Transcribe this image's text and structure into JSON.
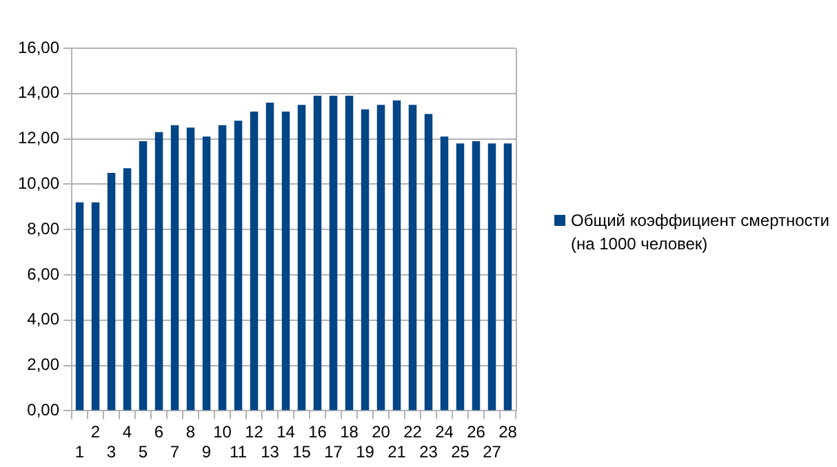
{
  "chart_data": {
    "type": "bar",
    "categories": [
      "1",
      "2",
      "3",
      "4",
      "5",
      "6",
      "7",
      "8",
      "9",
      "10",
      "11",
      "12",
      "13",
      "14",
      "15",
      "16",
      "17",
      "18",
      "19",
      "20",
      "21",
      "22",
      "23",
      "24",
      "25",
      "26",
      "27",
      "28"
    ],
    "series": [
      {
        "name": "Общий коэффициент смертности (на 1000 человек)",
        "color": "#004586",
        "values": [
          9.2,
          9.2,
          10.5,
          10.7,
          11.9,
          12.3,
          12.6,
          12.5,
          12.1,
          12.6,
          12.8,
          13.2,
          13.6,
          13.2,
          13.5,
          13.9,
          13.9,
          13.9,
          13.3,
          13.5,
          13.7,
          13.5,
          13.1,
          12.1,
          11.8,
          11.9,
          11.8,
          11.8
        ]
      }
    ],
    "ylim": [
      0,
      16
    ],
    "yticks": [
      {
        "value": 0,
        "label": "0,00"
      },
      {
        "value": 2,
        "label": "2,00"
      },
      {
        "value": 4,
        "label": "4,00"
      },
      {
        "value": 6,
        "label": "6,00"
      },
      {
        "value": 8,
        "label": "8,00"
      },
      {
        "value": 10,
        "label": "10,00"
      },
      {
        "value": 12,
        "label": "12,00"
      },
      {
        "value": 14,
        "label": "14,00"
      },
      {
        "value": 16,
        "label": "16,00"
      }
    ],
    "grid": "y",
    "legend": "right"
  }
}
